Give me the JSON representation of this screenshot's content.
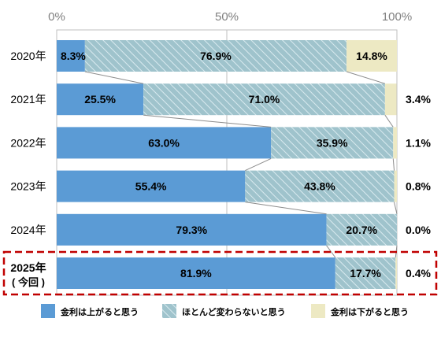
{
  "chart_data": {
    "type": "bar",
    "orientation": "horizontal",
    "stacked": true,
    "percent_stacked": true,
    "categories": [
      "2020年",
      "2021年",
      "2022年",
      "2023年",
      "2024年",
      "2025年"
    ],
    "highlighted_category": {
      "index": 5,
      "lines": [
        "2025年",
        "( 今回 )"
      ]
    },
    "series": [
      {
        "name": "金利は上がると思う",
        "values": [
          8.3,
          25.5,
          63.0,
          55.4,
          79.3,
          81.9
        ],
        "labels": [
          "8.3%",
          "25.5%",
          "63.0%",
          "55.4%",
          "79.3%",
          "81.9%"
        ]
      },
      {
        "name": "ほとんど変わらないと思う",
        "values": [
          76.9,
          71.0,
          35.9,
          43.8,
          20.7,
          17.7
        ],
        "labels": [
          "76.9%",
          "71.0%",
          "35.9%",
          "43.8%",
          "20.7%",
          "17.7%"
        ]
      },
      {
        "name": "金利は下がると思う",
        "values": [
          14.8,
          3.4,
          1.1,
          0.8,
          0.0,
          0.4
        ],
        "labels": [
          "14.8%",
          "3.4%",
          "1.1%",
          "0.8%",
          "0.0%",
          "0.4%"
        ]
      }
    ],
    "xlim": [
      0,
      100
    ],
    "x_ticks": [
      "0%",
      "50%",
      "100%"
    ],
    "x_tick_values": [
      0,
      50,
      100
    ],
    "grid": true,
    "legend_position": "bottom",
    "colors": {
      "up": "#5b9bd5",
      "flat_bg": "#9fc3cc",
      "flat_hatch": "#d9eaef",
      "down": "#ede9c3",
      "highlight_border": "#c00000",
      "grid": "#bfbfbf",
      "connector": "#8c8c8c",
      "tick_text": "#7f7f7f"
    }
  }
}
